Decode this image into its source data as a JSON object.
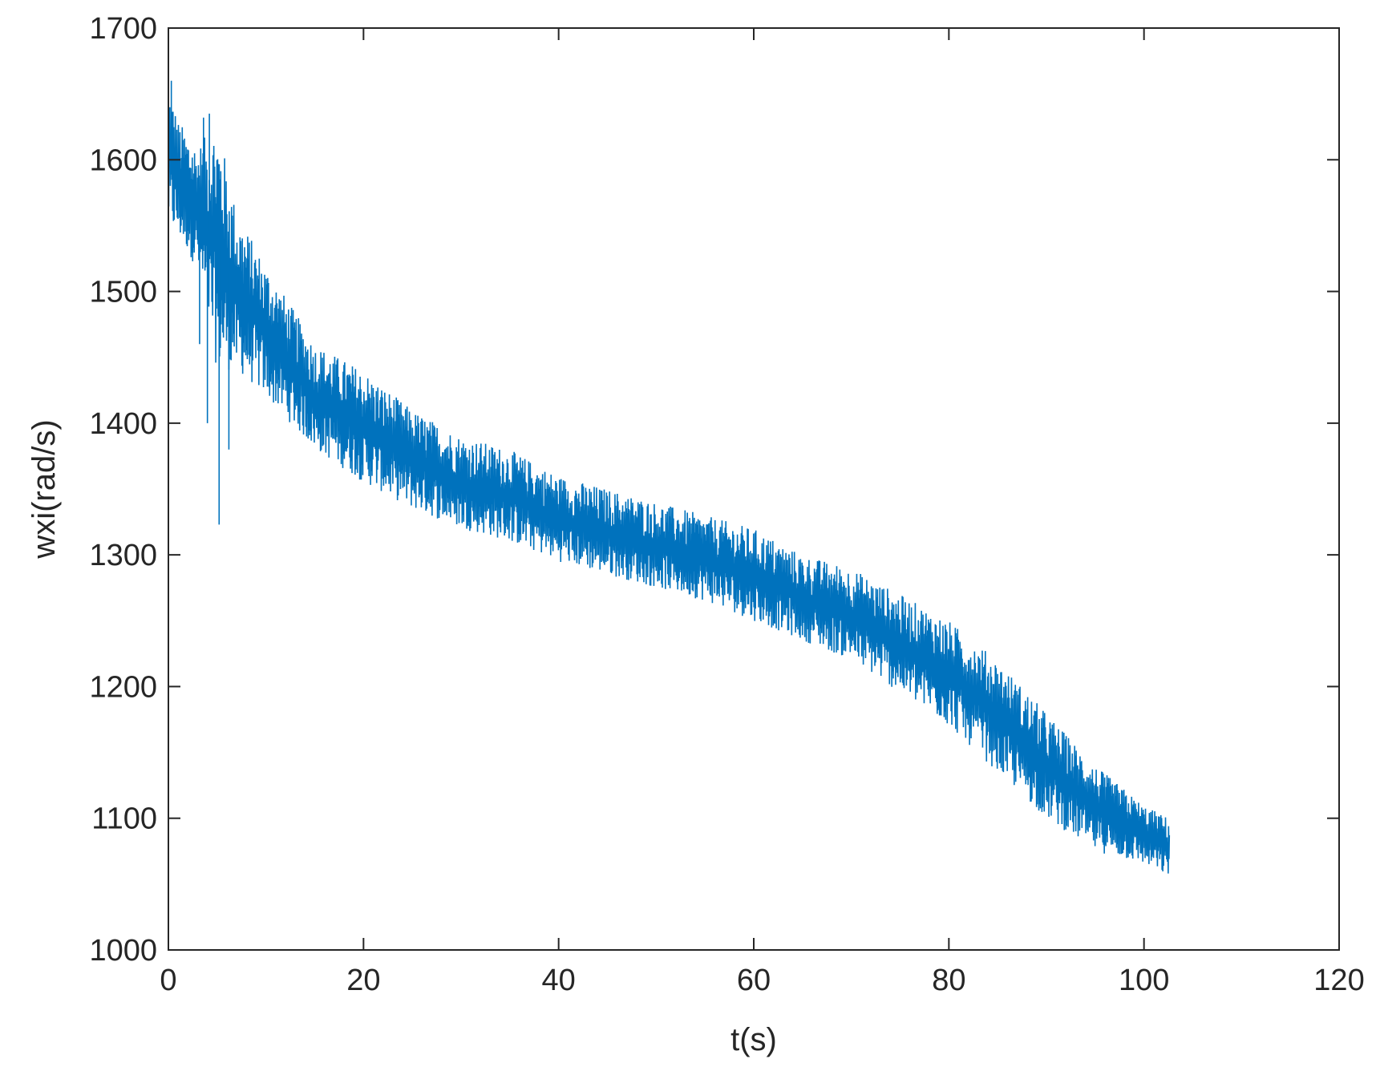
{
  "chart_data": {
    "type": "line",
    "title": "",
    "xlabel": "t(s)",
    "ylabel": "wxi(rad/s)",
    "xlim": [
      0,
      120
    ],
    "ylim": [
      1000,
      1700
    ],
    "xticks": [
      0,
      20,
      40,
      60,
      80,
      100,
      120
    ],
    "yticks": [
      1000,
      1100,
      1200,
      1300,
      1400,
      1500,
      1600,
      1700
    ],
    "grid": false,
    "legend": "none",
    "series_color": "#0072BD",
    "series": [
      {
        "name": "",
        "x": [
          0,
          1,
          2,
          3,
          5,
          7,
          10,
          15,
          20,
          25,
          30,
          35,
          40,
          45,
          50,
          55,
          60,
          65,
          70,
          75,
          80,
          85,
          90,
          95,
          100,
          102.6
        ],
        "lower": [
          1550,
          1540,
          1530,
          1515,
          1440,
          1440,
          1420,
          1380,
          1355,
          1335,
          1320,
          1310,
          1295,
          1285,
          1275,
          1265,
          1250,
          1235,
          1220,
          1195,
          1170,
          1135,
          1100,
          1075,
          1065,
          1055
        ],
        "upper": [
          1660,
          1630,
          1620,
          1610,
          1630,
          1560,
          1520,
          1460,
          1440,
          1410,
          1390,
          1380,
          1360,
          1350,
          1340,
          1330,
          1320,
          1300,
          1290,
          1270,
          1250,
          1220,
          1180,
          1140,
          1110,
          1100
        ],
        "spikes": [
          {
            "x": 5.2,
            "y": 1323
          },
          {
            "x": 4.0,
            "y": 1400
          },
          {
            "x": 6.2,
            "y": 1380
          },
          {
            "x": 3.2,
            "y": 1460
          },
          {
            "x": 0.3,
            "y": 1660
          },
          {
            "x": 3.6,
            "y": 1632
          },
          {
            "x": 4.2,
            "y": 1635
          }
        ]
      }
    ]
  }
}
